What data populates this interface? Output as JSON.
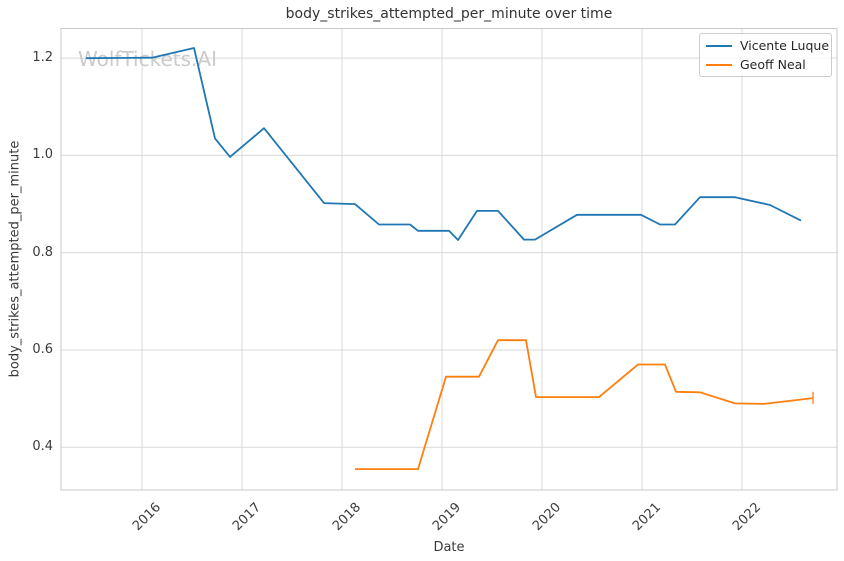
{
  "watermark": {
    "text": "WolfTickets.AI",
    "color": "#cbcbcb"
  },
  "chart_data": {
    "type": "line",
    "title": "body_strikes_attempted_per_minute over time",
    "xlabel": "Date",
    "ylabel": "body_strikes_attempted_per_minute",
    "grid": true,
    "legend_position": "upper right",
    "xlim": [
      2015.19,
      2022.95
    ],
    "ylim": [
      0.312,
      1.261
    ],
    "xticks": [
      {
        "value": 2016,
        "label": "2016"
      },
      {
        "value": 2017,
        "label": "2017"
      },
      {
        "value": 2018,
        "label": "2018"
      },
      {
        "value": 2019,
        "label": "2019"
      },
      {
        "value": 2020,
        "label": "2020"
      },
      {
        "value": 2021,
        "label": "2021"
      },
      {
        "value": 2022,
        "label": "2022"
      }
    ],
    "yticks": [
      {
        "value": 0.4,
        "label": "0.4"
      },
      {
        "value": 0.6,
        "label": "0.6"
      },
      {
        "value": 0.8,
        "label": "0.8"
      },
      {
        "value": 1.0,
        "label": "1.0"
      },
      {
        "value": 1.2,
        "label": "1.2"
      }
    ],
    "series": [
      {
        "name": "Vicente Luque",
        "color": "#1f77b4",
        "points": [
          [
            2015.44,
            1.2
          ],
          [
            2016.1,
            1.201
          ],
          [
            2016.52,
            1.221
          ],
          [
            2016.73,
            1.035
          ],
          [
            2016.88,
            0.997
          ],
          [
            2017.22,
            1.056
          ],
          [
            2017.82,
            0.902
          ],
          [
            2018.13,
            0.9
          ],
          [
            2018.37,
            0.858
          ],
          [
            2018.68,
            0.858
          ],
          [
            2018.76,
            0.845
          ],
          [
            2019.07,
            0.845
          ],
          [
            2019.16,
            0.826
          ],
          [
            2019.35,
            0.886
          ],
          [
            2019.56,
            0.886
          ],
          [
            2019.82,
            0.827
          ],
          [
            2019.93,
            0.827
          ],
          [
            2020.35,
            0.878
          ],
          [
            2020.99,
            0.878
          ],
          [
            2021.18,
            0.858
          ],
          [
            2021.33,
            0.858
          ],
          [
            2021.58,
            0.914
          ],
          [
            2021.93,
            0.914
          ],
          [
            2022.28,
            0.898
          ],
          [
            2022.59,
            0.866
          ]
        ]
      },
      {
        "name": "Geoff Neal",
        "color": "#ff7f0e",
        "points": [
          [
            2018.13,
            0.355
          ],
          [
            2018.76,
            0.355
          ],
          [
            2019.04,
            0.545
          ],
          [
            2019.37,
            0.545
          ],
          [
            2019.56,
            0.62
          ],
          [
            2019.84,
            0.62
          ],
          [
            2019.94,
            0.503
          ],
          [
            2020.57,
            0.503
          ],
          [
            2020.96,
            0.57
          ],
          [
            2021.23,
            0.57
          ],
          [
            2021.34,
            0.514
          ],
          [
            2021.58,
            0.513
          ],
          [
            2021.93,
            0.49
          ],
          [
            2022.22,
            0.489
          ],
          [
            2022.71,
            0.501
          ]
        ],
        "end_cap": {
          "x": 2022.71,
          "y_low": 0.489,
          "y_high": 0.514
        }
      }
    ],
    "grid_color": "#d9d9d9",
    "frame_color": "#c8c8c8"
  }
}
